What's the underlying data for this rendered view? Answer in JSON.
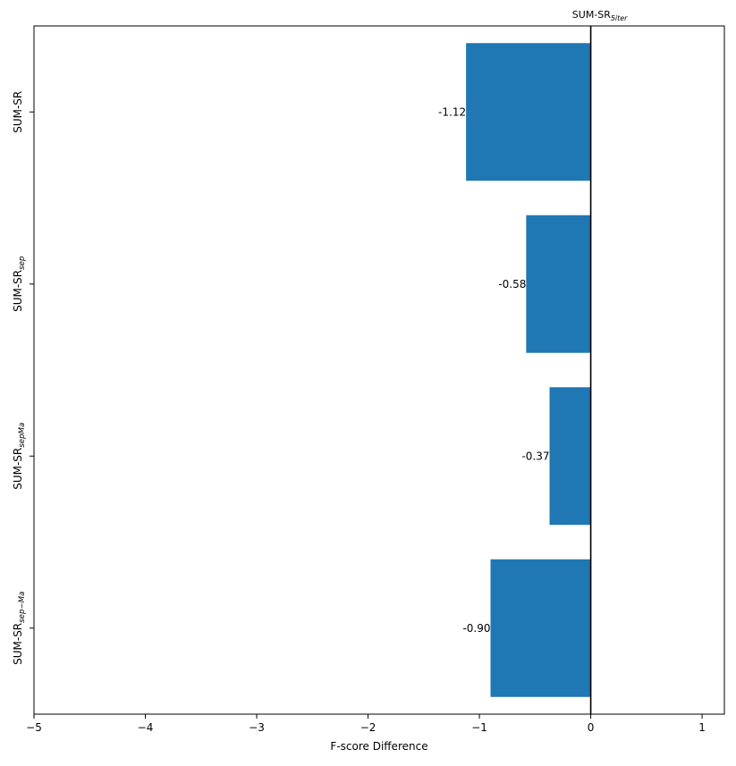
{
  "chart_data": {
    "type": "bar",
    "orientation": "horizontal",
    "categories": [
      {
        "base": "SUM-SR",
        "sub": ""
      },
      {
        "base": "SUM-SR",
        "sub": "sep"
      },
      {
        "base": "SUM-SR",
        "sub": "sepMa"
      },
      {
        "base": "SUM-SR",
        "sub": "sep−Ma"
      }
    ],
    "values": [
      -1.12,
      -0.58,
      -0.37,
      -0.9
    ],
    "value_labels": [
      "-1.12",
      "-0.58",
      "-0.37",
      "-0.90"
    ],
    "xlabel": "F-score Difference",
    "xlim": [
      -5,
      1.2
    ],
    "xticks": [
      -5,
      -4,
      -3,
      -2,
      -1,
      0,
      1
    ],
    "xtick_labels": [
      "−5",
      "−4",
      "−3",
      "−2",
      "−1",
      "0",
      "1"
    ],
    "reference_line": {
      "x": 0,
      "label_base": "SUM-SR",
      "label_sub": "5iter"
    },
    "bar_color": "#1f77b4",
    "grid": false,
    "legend": "none"
  }
}
